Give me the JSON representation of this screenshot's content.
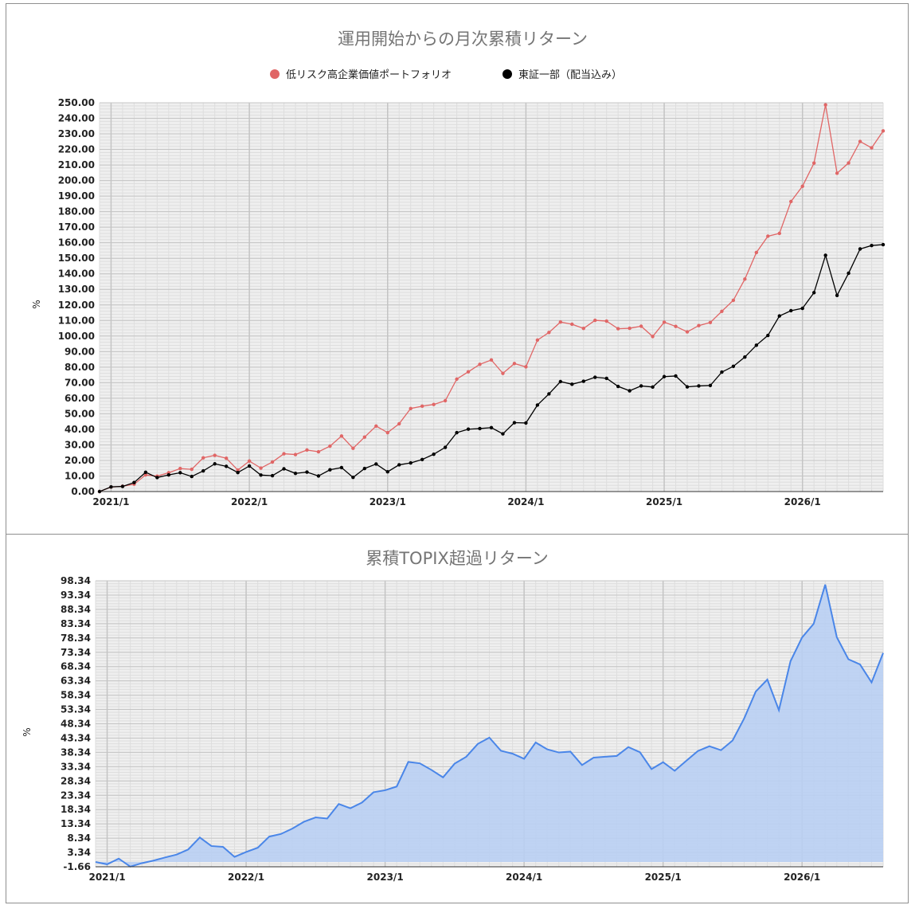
{
  "colors": {
    "portfolio": "#e06666",
    "topix": "#000000",
    "excess_line": "#4a86e8",
    "excess_fill": "#b9cff3",
    "plot_bg": "#efefef",
    "grid_major": "#c4c4c4",
    "grid_minor": "#dedede",
    "title": "#757575"
  },
  "chart_data": [
    {
      "type": "line",
      "title": "運用開始からの月次累積リターン",
      "ylabel": "%",
      "xlabel": "",
      "ylim": [
        0,
        250
      ],
      "grid": true,
      "legend": "top-center",
      "x_tick_labels": [
        "2021/1",
        "2022/1",
        "2023/1",
        "2024/1",
        "2025/1",
        "2026/1"
      ],
      "x_tick_index": [
        1,
        13,
        25,
        37,
        49,
        61
      ],
      "y_tick_labels": [
        "0.00",
        "10.00",
        "20.00",
        "30.00",
        "40.00",
        "50.00",
        "60.00",
        "70.00",
        "80.00",
        "90.00",
        "100.00",
        "110.00",
        "120.00",
        "130.00",
        "140.00",
        "150.00",
        "160.00",
        "170.00",
        "180.00",
        "190.00",
        "200.00",
        "210.00",
        "220.00",
        "230.00",
        "240.00",
        "250.00"
      ],
      "series": [
        {
          "name": "低リスク高企業価値ポートフォリオ",
          "color": "#e06666",
          "values": [
            0.0,
            2.9,
            3.4,
            4.7,
            10.7,
            9.9,
            12.1,
            14.8,
            14.3,
            21.7,
            23.3,
            21.4,
            13.8,
            19.6,
            15.1,
            19.0,
            24.3,
            23.8,
            26.7,
            25.6,
            29.2,
            35.7,
            27.8,
            35.0,
            42.1,
            37.9,
            43.6,
            53.4,
            54.9,
            56.0,
            58.4,
            72.3,
            77.0,
            81.8,
            84.6,
            76.0,
            82.3,
            80.2,
            97.4,
            102.3,
            109.0,
            107.6,
            104.9,
            110.1,
            109.6,
            104.7,
            105.0,
            106.3,
            99.7,
            108.9,
            106.2,
            102.7,
            106.7,
            108.7,
            115.9,
            123.0,
            136.6,
            153.7,
            164.2,
            166.0,
            186.5,
            196.3,
            211.2,
            248.7,
            204.7,
            211.3,
            225.1,
            221.0,
            231.9
          ]
        },
        {
          "name": "東証一部（配当込み）",
          "color": "#000000",
          "values": [
            0.0,
            3.0,
            3.3,
            5.8,
            12.4,
            9.0,
            10.7,
            12.1,
            9.7,
            13.3,
            17.8,
            16.2,
            12.2,
            16.4,
            10.6,
            10.2,
            14.6,
            11.7,
            12.5,
            10.0,
            14.0,
            15.4,
            9.1,
            14.8,
            17.7,
            12.7,
            17.2,
            18.4,
            20.6,
            24.0,
            28.4,
            37.9,
            40.1,
            40.5,
            41.1,
            37.1,
            44.3,
            44.1,
            55.6,
            62.8,
            70.7,
            69.0,
            70.9,
            73.5,
            72.8,
            67.6,
            64.8,
            67.9,
            67.2,
            73.9,
            74.3,
            67.3,
            67.9,
            68.2,
            76.8,
            80.5,
            86.5,
            94.1,
            100.4,
            112.9,
            116.3,
            117.8,
            127.9,
            151.9,
            126.1,
            140.4,
            156.0,
            158.2,
            158.8
          ]
        }
      ]
    },
    {
      "type": "area",
      "title": "累積TOPIX超過リターン",
      "ylabel": "%",
      "xlabel": "",
      "ylim": [
        -1.66,
        98.34
      ],
      "grid": true,
      "legend": "none",
      "x_tick_labels": [
        "2021/1",
        "2022/1",
        "2023/1",
        "2024/1",
        "2025/1",
        "2026/1"
      ],
      "x_tick_index": [
        1,
        13,
        25,
        37,
        49,
        61
      ],
      "y_tick_labels": [
        "-1.66",
        "3.34",
        "8.34",
        "13.34",
        "18.34",
        "23.34",
        "28.34",
        "33.34",
        "38.34",
        "43.34",
        "48.34",
        "53.34",
        "58.34",
        "63.34",
        "68.34",
        "73.34",
        "78.34",
        "83.34",
        "88.34",
        "93.34",
        "98.34"
      ],
      "series": [
        {
          "name": "",
          "color": "#4a86e8",
          "values": [
            0.0,
            -0.8,
            1.2,
            -1.6,
            -0.4,
            0.5,
            1.6,
            2.6,
            4.4,
            8.6,
            5.6,
            5.3,
            1.8,
            3.5,
            5.0,
            8.9,
            9.8,
            11.7,
            14.1,
            15.6,
            15.2,
            20.3,
            18.8,
            20.8,
            24.4,
            25.1,
            26.4,
            35.0,
            34.5,
            32.2,
            29.6,
            34.4,
            36.8,
            41.3,
            43.5,
            38.9,
            37.9,
            36.1,
            41.8,
            39.4,
            38.3,
            38.6,
            33.9,
            36.5,
            36.8,
            37.1,
            40.2,
            38.4,
            32.5,
            34.9,
            31.9,
            35.4,
            38.8,
            40.5,
            39.1,
            42.5,
            50.2,
            59.6,
            63.8,
            53.1,
            70.2,
            78.5,
            83.3,
            97.0,
            78.6,
            70.9,
            69.1,
            62.8,
            73.1
          ]
        }
      ]
    }
  ]
}
